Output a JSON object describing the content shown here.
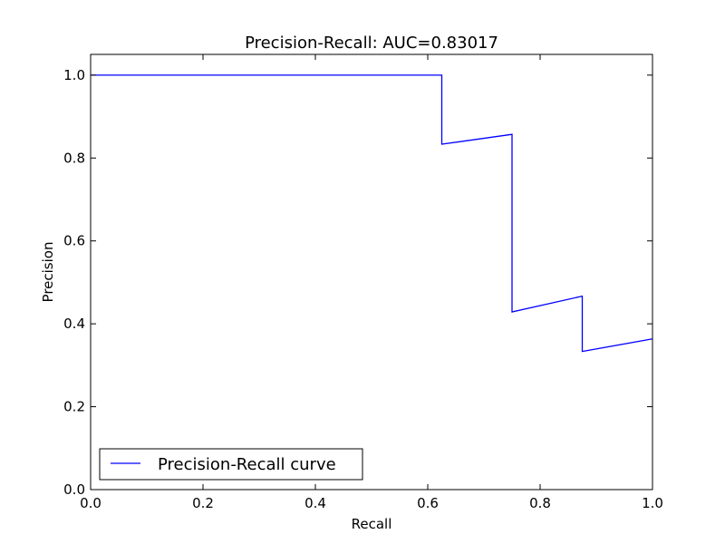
{
  "chart_data": {
    "type": "line",
    "title": "Precision-Recall: AUC=0.83017",
    "xlabel": "Recall",
    "ylabel": "Precision",
    "xlim": [
      0.0,
      1.0
    ],
    "ylim": [
      0.0,
      1.05
    ],
    "xticks": [
      0.0,
      0.2,
      0.4,
      0.6,
      0.8,
      1.0
    ],
    "yticks": [
      0.0,
      0.2,
      0.4,
      0.6,
      0.8,
      1.0
    ],
    "xtick_labels": [
      "0.0",
      "0.2",
      "0.4",
      "0.6",
      "0.8",
      "1.0"
    ],
    "ytick_labels": [
      "0.0",
      "0.2",
      "0.4",
      "0.6",
      "0.8",
      "1.0"
    ],
    "grid": false,
    "legend_position": "lower-left",
    "series": [
      {
        "name": "Precision-Recall curve",
        "color": "#0000ff",
        "x": [
          0.0,
          0.625,
          0.625,
          0.75,
          0.75,
          0.875,
          0.875,
          1.0
        ],
        "y": [
          1.0,
          1.0,
          0.8333,
          0.8571,
          0.4286,
          0.4667,
          0.3333,
          0.3636
        ]
      }
    ]
  }
}
